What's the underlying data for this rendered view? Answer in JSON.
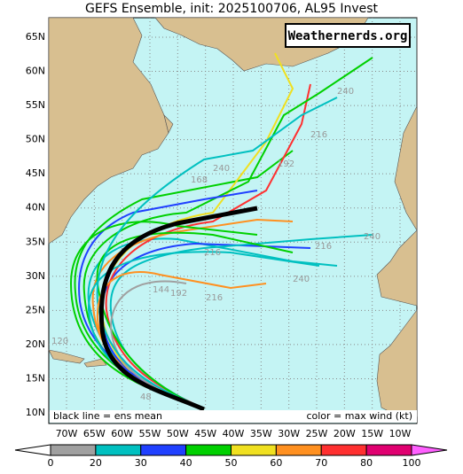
{
  "map": {
    "title": "GEFS Ensemble, init: 2025100706, AL95 Invest",
    "watermark": "Weathernerds.org",
    "legend_left": "black line = ens mean",
    "legend_right": "color = max wind (kt)",
    "lon_ticks": [
      {
        "value": -70,
        "label": "70W"
      },
      {
        "value": -65,
        "label": "65W"
      },
      {
        "value": -60,
        "label": "60W"
      },
      {
        "value": -55,
        "label": "55W"
      },
      {
        "value": -50,
        "label": "50W"
      },
      {
        "value": -45,
        "label": "45W"
      },
      {
        "value": -40,
        "label": "40W"
      },
      {
        "value": -35,
        "label": "35W"
      },
      {
        "value": -30,
        "label": "30W"
      },
      {
        "value": -25,
        "label": "25W"
      },
      {
        "value": -20,
        "label": "20W"
      },
      {
        "value": -15,
        "label": "15W"
      },
      {
        "value": -10,
        "label": "10W"
      }
    ],
    "lat_ticks": [
      {
        "value": 10,
        "label": "10N"
      },
      {
        "value": 15,
        "label": "15N"
      },
      {
        "value": 20,
        "label": "20N"
      },
      {
        "value": 25,
        "label": "25N"
      },
      {
        "value": 30,
        "label": "30N"
      },
      {
        "value": 35,
        "label": "35N"
      },
      {
        "value": 40,
        "label": "40N"
      },
      {
        "value": 45,
        "label": "45N"
      },
      {
        "value": 50,
        "label": "50N"
      },
      {
        "value": 55,
        "label": "55N"
      },
      {
        "value": 60,
        "label": "60N"
      },
      {
        "value": 65,
        "label": "65N"
      }
    ],
    "hour_labels": [
      "240",
      "216",
      "192",
      "168",
      "240",
      "216",
      "240",
      "216",
      "240",
      "144",
      "192",
      "216",
      "120",
      "48"
    ],
    "colorbar": {
      "ticks": [
        0,
        20,
        30,
        40,
        50,
        60,
        70,
        80,
        100
      ],
      "colors": [
        "#a0a0a0",
        "#00c0c0",
        "#2040ff",
        "#00d000",
        "#f0e020",
        "#ff9020",
        "#ff3030",
        "#e00070"
      ],
      "under_color": "#ffffff",
      "over_color": "#ff60ff"
    }
  }
}
